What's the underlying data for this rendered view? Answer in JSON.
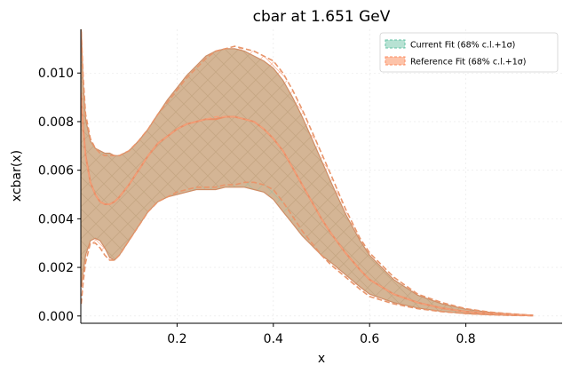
{
  "chart_data": {
    "type": "area",
    "title": "cbar at 1.651 GeV",
    "xlabel": "x",
    "ylabel": "xcbar(x)",
    "xlim": [
      0.0,
      1.0
    ],
    "ylim": [
      -0.0003,
      0.0118
    ],
    "xticks": [
      0.2,
      0.4,
      0.6,
      0.8
    ],
    "xtick_labels": [
      "0.2",
      "0.4",
      "0.6",
      "0.8"
    ],
    "yticks": [
      0.0,
      0.002,
      0.004,
      0.006,
      0.008,
      0.01
    ],
    "ytick_labels": [
      "0.000",
      "0.002",
      "0.004",
      "0.006",
      "0.008",
      "0.010"
    ],
    "grid": true,
    "legend_position": "top-right",
    "colors": {
      "current": "#66c2a5",
      "reference": "#fc8d62",
      "overlap": "#d4b595",
      "axis": "#000000"
    },
    "series": [
      {
        "name": "Current Fit (68% c.l.+1σ)",
        "color": "#66c2a5",
        "style": "solid",
        "x": [
          0.001,
          0.005,
          0.01,
          0.02,
          0.03,
          0.04,
          0.05,
          0.06,
          0.07,
          0.08,
          0.1,
          0.12,
          0.14,
          0.16,
          0.18,
          0.2,
          0.22,
          0.24,
          0.26,
          0.28,
          0.3,
          0.32,
          0.34,
          0.36,
          0.38,
          0.4,
          0.42,
          0.44,
          0.46,
          0.48,
          0.5,
          0.52,
          0.55,
          0.58,
          0.6,
          0.65,
          0.7,
          0.75,
          0.8,
          0.85,
          0.9,
          0.94
        ],
        "upper": [
          0.0118,
          0.0095,
          0.0081,
          0.0072,
          0.0069,
          0.0068,
          0.0067,
          0.0067,
          0.0066,
          0.0066,
          0.0068,
          0.0072,
          0.0077,
          0.0083,
          0.0089,
          0.0094,
          0.0099,
          0.0103,
          0.0107,
          0.0109,
          0.011,
          0.011,
          0.0109,
          0.0107,
          0.0105,
          0.0102,
          0.0097,
          0.009,
          0.0082,
          0.0073,
          0.0064,
          0.0055,
          0.0042,
          0.0031,
          0.0025,
          0.0015,
          0.00085,
          0.0005,
          0.00028,
          0.00015,
          7e-05,
          3e-05
        ],
        "central": [
          0.0091,
          0.0077,
          0.0066,
          0.0055,
          0.005,
          0.0047,
          0.0046,
          0.0046,
          0.0047,
          0.0049,
          0.0054,
          0.006,
          0.0066,
          0.0071,
          0.0074,
          0.0077,
          0.0079,
          0.008,
          0.0081,
          0.0081,
          0.0082,
          0.0082,
          0.0081,
          0.008,
          0.0077,
          0.0073,
          0.0068,
          0.0061,
          0.0054,
          0.0047,
          0.004,
          0.0034,
          0.0026,
          0.0019,
          0.0015,
          0.0009,
          0.00055,
          0.00032,
          0.00018,
          0.0001,
          5e-05,
          2e-05
        ],
        "lower": [
          0.0012,
          0.0018,
          0.0025,
          0.0031,
          0.0032,
          0.0031,
          0.0028,
          0.0024,
          0.0023,
          0.0025,
          0.0031,
          0.0037,
          0.0043,
          0.0047,
          0.0049,
          0.005,
          0.0051,
          0.0052,
          0.0052,
          0.0052,
          0.0053,
          0.0053,
          0.0053,
          0.0052,
          0.0051,
          0.0048,
          0.0043,
          0.0038,
          0.0033,
          0.0029,
          0.0025,
          0.0022,
          0.0017,
          0.0012,
          0.0009,
          0.00055,
          0.00033,
          0.00019,
          0.0001,
          5e-05,
          2e-05,
          1e-05
        ]
      },
      {
        "name": "Reference Fit (68% c.l.+1σ)",
        "color": "#fc8d62",
        "style": "dashed",
        "x": [
          0.001,
          0.005,
          0.01,
          0.02,
          0.03,
          0.04,
          0.05,
          0.06,
          0.07,
          0.08,
          0.1,
          0.12,
          0.14,
          0.16,
          0.18,
          0.2,
          0.22,
          0.24,
          0.26,
          0.28,
          0.3,
          0.32,
          0.34,
          0.36,
          0.38,
          0.4,
          0.42,
          0.44,
          0.46,
          0.48,
          0.5,
          0.52,
          0.55,
          0.58,
          0.6,
          0.65,
          0.7,
          0.75,
          0.8,
          0.85,
          0.9,
          0.94
        ],
        "upper": [
          0.0117,
          0.0098,
          0.0083,
          0.0073,
          0.0069,
          0.0067,
          0.0066,
          0.0066,
          0.0066,
          0.0066,
          0.0068,
          0.0072,
          0.0077,
          0.0083,
          0.0088,
          0.0093,
          0.0098,
          0.0102,
          0.0106,
          0.0109,
          0.011,
          0.0111,
          0.011,
          0.0109,
          0.0107,
          0.0105,
          0.01,
          0.0093,
          0.0085,
          0.0076,
          0.0067,
          0.0058,
          0.0044,
          0.0032,
          0.0026,
          0.0016,
          0.0009,
          0.00055,
          0.0003,
          0.00016,
          8e-05,
          3e-05
        ],
        "central": [
          0.0092,
          0.0076,
          0.0065,
          0.0055,
          0.005,
          0.0047,
          0.0046,
          0.0046,
          0.0047,
          0.0049,
          0.0054,
          0.006,
          0.0066,
          0.0071,
          0.0074,
          0.0077,
          0.0079,
          0.008,
          0.0081,
          0.0082,
          0.0082,
          0.0082,
          0.0081,
          0.008,
          0.0077,
          0.0073,
          0.0068,
          0.0061,
          0.0054,
          0.0047,
          0.004,
          0.0034,
          0.0026,
          0.0019,
          0.0015,
          0.0009,
          0.00055,
          0.00032,
          0.00018,
          0.0001,
          5e-05,
          2e-05
        ],
        "lower": [
          0.0005,
          0.0014,
          0.0022,
          0.003,
          0.003,
          0.0028,
          0.0025,
          0.0023,
          0.0023,
          0.0025,
          0.0031,
          0.0037,
          0.0043,
          0.0047,
          0.0049,
          0.0051,
          0.0052,
          0.0053,
          0.0053,
          0.0053,
          0.0054,
          0.0054,
          0.0055,
          0.0055,
          0.0054,
          0.0052,
          0.0047,
          0.0041,
          0.0035,
          0.003,
          0.0025,
          0.0021,
          0.0016,
          0.0011,
          0.0008,
          0.0005,
          0.0003,
          0.00018,
          0.0001,
          5e-05,
          2e-05,
          1e-05
        ]
      }
    ]
  }
}
